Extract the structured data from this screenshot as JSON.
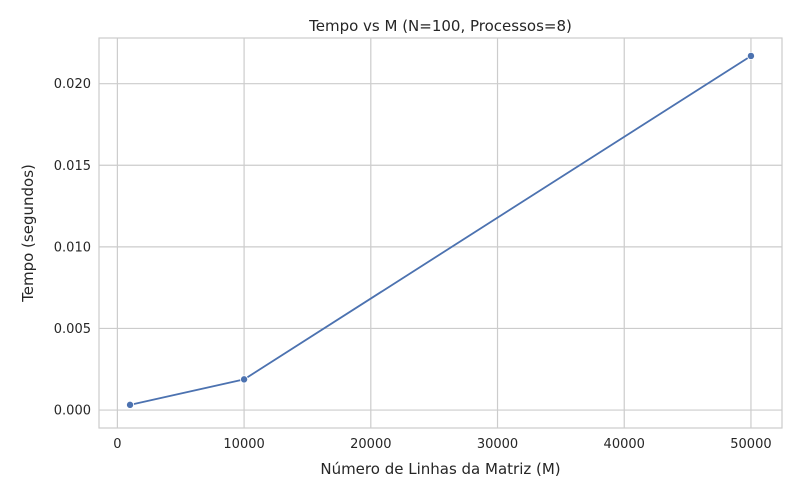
{
  "chart_data": {
    "type": "line",
    "title": "Tempo vs M (N=100, Processos=8)",
    "xlabel": "Número de Linhas da Matriz (M)",
    "ylabel": "Tempo (segundos)",
    "xlim": [
      -1450,
      52450
    ],
    "ylim": [
      -0.0011,
      0.0228
    ],
    "xticks": [
      0,
      10000,
      20000,
      30000,
      40000,
      50000
    ],
    "xtick_labels": [
      "0",
      "10000",
      "20000",
      "30000",
      "40000",
      "50000"
    ],
    "yticks": [
      0.0,
      0.005,
      0.01,
      0.015,
      0.02
    ],
    "ytick_labels": [
      "0.000",
      "0.005",
      "0.010",
      "0.015",
      "0.020"
    ],
    "grid": true,
    "series": [
      {
        "x": [
          1000,
          10000,
          50000
        ],
        "y": [
          0.00032,
          0.00188,
          0.0217
        ],
        "color": "#4c72b0",
        "marker": "circle"
      }
    ]
  }
}
